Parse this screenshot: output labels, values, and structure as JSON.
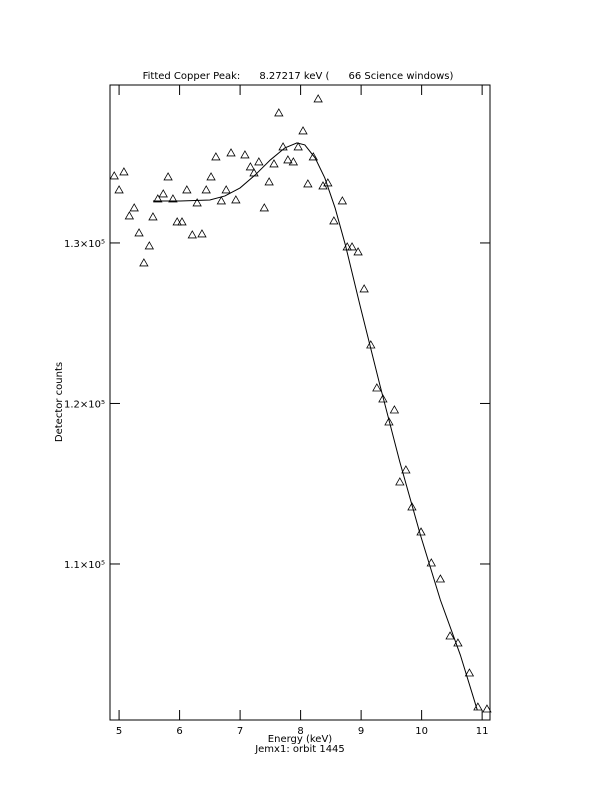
{
  "chart_data": {
    "type": "scatter",
    "title": "Fitted Copper Peak:      8.27217 keV (      66 Science windows)",
    "x_label": "Energy (keV)",
    "subtitle": "Jemx1: orbit 1445",
    "y_label": "Detector counts",
    "xlim": [
      4.85,
      11.13
    ],
    "ylim": [
      100280,
      139840
    ],
    "xticks": [
      5,
      6,
      7,
      8,
      9,
      10,
      11
    ],
    "yticks": [
      {
        "value": 110000,
        "label": "1.1×10⁵"
      },
      {
        "value": 120000,
        "label": "1.2×10⁵"
      },
      {
        "value": 130000,
        "label": "1.3×10⁵"
      }
    ],
    "grid": false,
    "series": [
      {
        "type": "scatter",
        "marker": "triangle",
        "color": "#000000",
        "x": [
          4.92,
          5.0,
          5.08,
          5.17,
          5.25,
          5.33,
          5.41,
          5.5,
          5.56,
          5.64,
          5.73,
          5.81,
          5.89,
          5.96,
          6.04,
          6.12,
          6.21,
          6.29,
          6.37,
          6.44,
          6.52,
          6.6,
          6.69,
          6.77,
          6.85,
          6.93,
          7.08,
          7.17,
          7.23,
          7.31,
          7.4,
          7.48,
          7.56,
          7.64,
          7.71,
          7.79,
          7.88,
          7.96,
          8.04,
          8.12,
          8.21,
          8.29,
          8.37,
          8.45,
          8.55,
          8.69,
          8.77,
          8.85,
          8.95,
          9.05,
          9.16,
          9.26,
          9.36,
          9.46,
          9.55,
          9.64,
          9.74,
          9.84,
          9.99,
          10.16,
          10.31,
          10.47,
          10.6,
          10.79,
          10.93,
          11.08
        ],
        "values": [
          134175,
          133302,
          134424,
          131682,
          132181,
          130623,
          128754,
          129813,
          131620,
          132742,
          133053,
          134112,
          132742,
          131309,
          131309,
          133302,
          130498,
          132492,
          130561,
          133302,
          134112,
          135359,
          132617,
          133302,
          135608,
          132679,
          135483,
          134736,
          134362,
          135047,
          132181,
          133801,
          134922,
          138100,
          135982,
          135172,
          135047,
          135982,
          136979,
          133676,
          135359,
          138973,
          133552,
          133739,
          131371,
          132617,
          129751,
          129751,
          129439,
          127134,
          123644,
          120965,
          120280,
          118847,
          119594,
          115108,
          115856,
          113550,
          111992,
          110062,
          109064,
          105512,
          105076,
          103207,
          101088,
          100963
        ]
      },
      {
        "type": "line",
        "color": "#000000",
        "x": [
          5.56,
          6.01,
          6.5,
          6.75,
          7.0,
          7.25,
          7.5,
          7.74,
          7.94,
          8.07,
          8.24,
          8.4,
          8.57,
          8.74,
          8.98,
          9.31,
          9.64,
          9.98,
          10.31,
          10.64,
          10.92
        ],
        "values": [
          132617,
          132617,
          132679,
          132929,
          133427,
          134237,
          135172,
          135920,
          136231,
          136106,
          135296,
          134050,
          132181,
          129875,
          126137,
          121152,
          116354,
          111805,
          107755,
          104328,
          100900
        ]
      }
    ]
  }
}
